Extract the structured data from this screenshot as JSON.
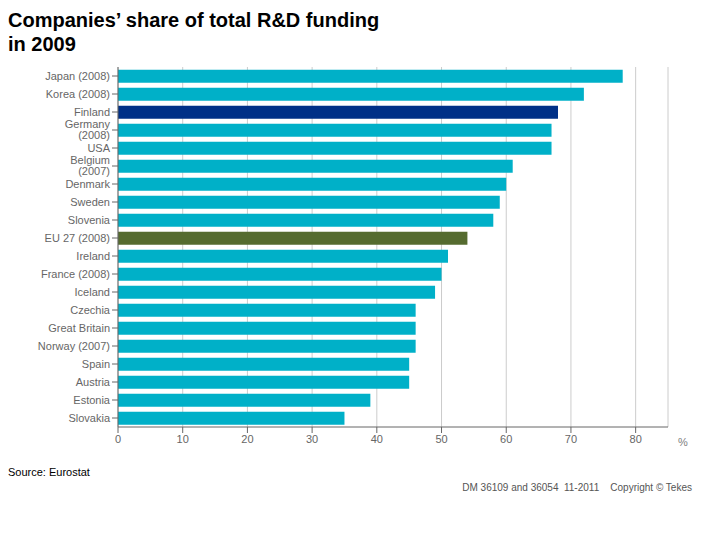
{
  "chart_data": {
    "type": "bar",
    "orientation": "horizontal",
    "title": "Companies’ share of total R&D funding\nin 2009",
    "xlabel": "%",
    "annotations": [
      "Source: Eurostat",
      "DM 36109 and 36054  11-2011    Copyright © Tekes"
    ],
    "categories": [
      "Japan (2008)",
      "Korea (2008)",
      "Finland",
      "Germany (2008)",
      "USA",
      "Belgium (2007)",
      "Denmark",
      "Sweden",
      "Slovenia",
      "EU 27 (2008)",
      "Ireland",
      "France (2008)",
      "Iceland",
      "Czechia",
      "Great Britain",
      "Norway (2007)",
      "Spain",
      "Austria",
      "Estonia",
      "Slovakia"
    ],
    "values": [
      78,
      72,
      68,
      67,
      67,
      61,
      60,
      59,
      58,
      54,
      51,
      50,
      49,
      46,
      46,
      46,
      45,
      45,
      39,
      35
    ],
    "colors": [
      "#00b0c8",
      "#00b0c8",
      "#003087",
      "#00b0c8",
      "#00b0c8",
      "#00b0c8",
      "#00b0c8",
      "#00b0c8",
      "#00b0c8",
      "#556b2f",
      "#00b0c8",
      "#00b0c8",
      "#00b0c8",
      "#00b0c8",
      "#00b0c8",
      "#00b0c8",
      "#00b0c8",
      "#00b0c8",
      "#00b0c8",
      "#00b0c8"
    ],
    "xlim": [
      0,
      85
    ],
    "xticks": [
      0,
      10,
      20,
      30,
      40,
      50,
      60,
      70,
      80
    ],
    "grid": true
  }
}
